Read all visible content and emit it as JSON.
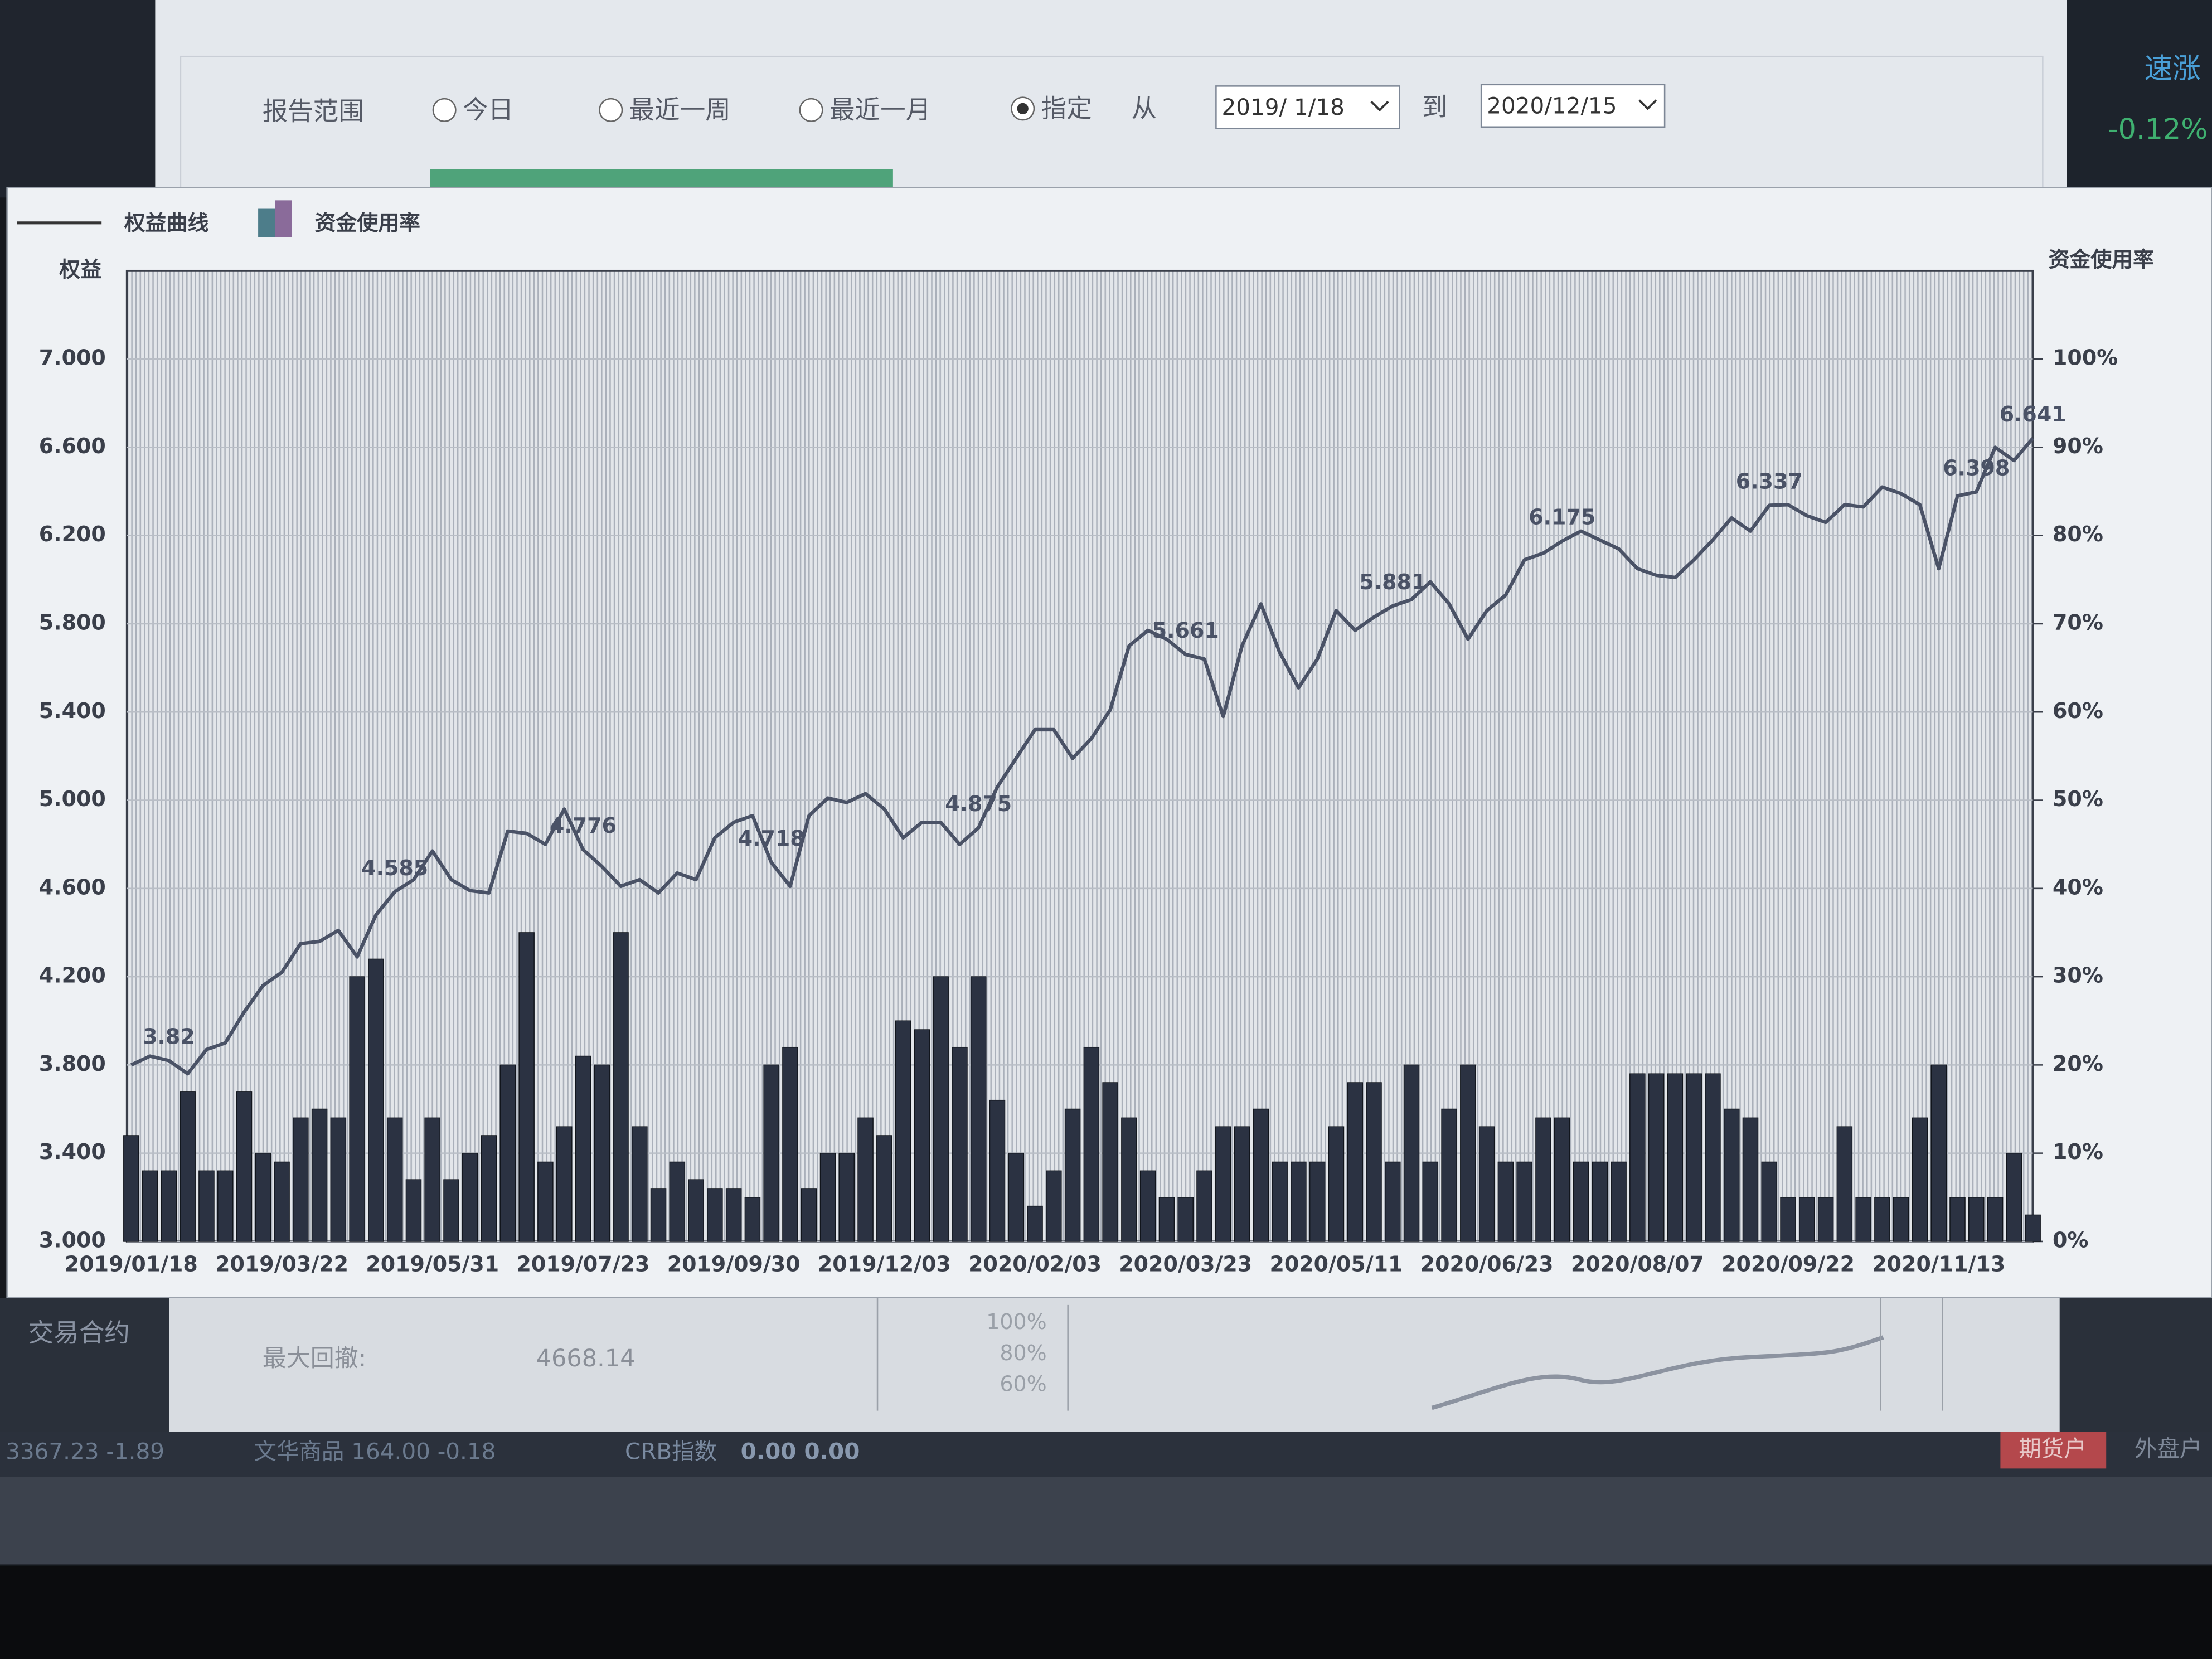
{
  "dialog": {
    "range_label": "报告范围",
    "options": [
      "今日",
      "最近一周",
      "最近一月",
      "指定"
    ],
    "from_label": "从",
    "from_date": "2019/ 1/18",
    "to_label": "到",
    "to_date": "2020/12/15"
  },
  "chart_data": {
    "type": "combo",
    "y_axis_title": "权益",
    "y2_axis_title": "资金使用率",
    "categories": [
      "2019/01/18",
      null,
      null,
      null,
      null,
      null,
      null,
      null,
      "2019/03/22",
      null,
      null,
      null,
      null,
      null,
      null,
      null,
      "2019/05/31",
      null,
      null,
      null,
      null,
      null,
      null,
      null,
      "2019/07/23",
      null,
      null,
      null,
      null,
      null,
      null,
      null,
      "2019/09/30",
      null,
      null,
      null,
      null,
      null,
      null,
      null,
      "2019/12/03",
      null,
      null,
      null,
      null,
      null,
      null,
      null,
      "2020/02/03",
      null,
      null,
      null,
      null,
      null,
      null,
      null,
      "2020/03/23",
      null,
      null,
      null,
      null,
      null,
      null,
      null,
      "2020/05/11",
      null,
      null,
      null,
      null,
      null,
      null,
      null,
      "2020/06/23",
      null,
      null,
      null,
      null,
      null,
      null,
      null,
      "2020/08/07",
      null,
      null,
      null,
      null,
      null,
      null,
      null,
      "2020/09/22",
      null,
      null,
      null,
      null,
      null,
      null,
      null,
      "2020/11/13",
      null,
      null,
      null,
      null,
      null
    ],
    "series": [
      {
        "name": "权益曲线",
        "color": "#4a5266",
        "values": [
          3.8,
          3.84,
          3.82,
          3.76,
          3.87,
          3.9,
          4.04,
          4.16,
          4.22,
          4.35,
          4.36,
          4.41,
          4.29,
          4.48,
          4.585,
          4.64,
          4.77,
          4.64,
          4.59,
          4.58,
          4.86,
          4.85,
          4.8,
          4.96,
          4.776,
          4.7,
          4.61,
          4.64,
          4.58,
          4.67,
          4.64,
          4.83,
          4.9,
          4.93,
          4.718,
          4.61,
          4.93,
          5.01,
          4.99,
          5.03,
          4.96,
          4.83,
          4.9,
          4.9,
          4.8,
          4.875,
          5.06,
          5.19,
          5.32,
          5.32,
          5.19,
          5.28,
          5.41,
          5.7,
          5.77,
          5.73,
          5.661,
          5.64,
          5.38,
          5.7,
          5.89,
          5.67,
          5.51,
          5.64,
          5.86,
          5.77,
          5.83,
          5.881,
          5.91,
          5.99,
          5.89,
          5.73,
          5.86,
          5.93,
          6.09,
          6.12,
          6.175,
          6.22,
          6.18,
          6.14,
          6.05,
          6.02,
          6.01,
          6.09,
          6.18,
          6.28,
          6.22,
          6.337,
          6.34,
          6.29,
          6.26,
          6.34,
          6.33,
          6.42,
          6.39,
          6.34,
          6.05,
          6.38,
          6.398,
          6.6,
          6.54,
          6.641
        ],
        "value_labels": [
          null,
          null,
          "3.82",
          null,
          null,
          null,
          null,
          null,
          null,
          null,
          null,
          null,
          null,
          null,
          "4.585",
          null,
          null,
          null,
          null,
          null,
          null,
          null,
          null,
          null,
          "4.776",
          null,
          null,
          null,
          null,
          null,
          null,
          null,
          null,
          null,
          "4.718",
          null,
          null,
          null,
          null,
          null,
          null,
          null,
          null,
          null,
          null,
          "4.875",
          null,
          null,
          null,
          null,
          null,
          null,
          null,
          null,
          null,
          null,
          "5.661",
          null,
          null,
          null,
          null,
          null,
          null,
          null,
          null,
          null,
          null,
          "5.881",
          null,
          null,
          null,
          null,
          null,
          null,
          null,
          null,
          "6.175",
          null,
          null,
          null,
          null,
          null,
          null,
          null,
          null,
          null,
          null,
          "6.337",
          null,
          null,
          null,
          null,
          null,
          null,
          null,
          null,
          null,
          null,
          "6.398",
          null,
          null,
          "6.641"
        ]
      },
      {
        "name": "资金使用率",
        "color": "#2b3242",
        "axis": "y2",
        "values": [
          12,
          8,
          8,
          17,
          8,
          8,
          17,
          10,
          9,
          14,
          15,
          14,
          30,
          32,
          14,
          7,
          14,
          7,
          10,
          12,
          20,
          35,
          9,
          13,
          21,
          20,
          35,
          13,
          6,
          9,
          7,
          6,
          6,
          5,
          20,
          22,
          6,
          10,
          10,
          14,
          12,
          25,
          24,
          30,
          22,
          30,
          16,
          10,
          4,
          8,
          15,
          22,
          18,
          14,
          8,
          5,
          5,
          8,
          13,
          13,
          15,
          9,
          9,
          9,
          13,
          18,
          18,
          9,
          20,
          9,
          15,
          20,
          13,
          9,
          9,
          14,
          14,
          9,
          9,
          9,
          19,
          19,
          19,
          19,
          19,
          15,
          14,
          9,
          5,
          5,
          5,
          13,
          5,
          5,
          5,
          14,
          20,
          5,
          5,
          5,
          10,
          3
        ]
      }
    ],
    "ylim": [
      3,
      7.4
    ],
    "yticks": [
      {
        "value": 3,
        "label": "3.000"
      },
      {
        "value": 3.4,
        "label": "3.400"
      },
      {
        "value": 3.8,
        "label": "3.800"
      },
      {
        "value": 4.2,
        "label": "4.200"
      },
      {
        "value": 4.6,
        "label": "4.600"
      },
      {
        "value": 5,
        "label": "5.000"
      },
      {
        "value": 5.4,
        "label": "5.400"
      },
      {
        "value": 5.8,
        "label": "5.800"
      },
      {
        "value": 6.2,
        "label": "6.200"
      },
      {
        "value": 6.6,
        "label": "6.600"
      },
      {
        "value": 7,
        "label": "7.000"
      }
    ],
    "y2lim": [
      0,
      110
    ],
    "y2ticks": [
      {
        "value": 0,
        "label": "0%"
      },
      {
        "value": 10,
        "label": "10%"
      },
      {
        "value": 20,
        "label": "20%"
      },
      {
        "value": 30,
        "label": "30%"
      },
      {
        "value": 40,
        "label": "40%"
      },
      {
        "value": 50,
        "label": "50%"
      },
      {
        "value": 60,
        "label": "60%"
      },
      {
        "value": 70,
        "label": "70%"
      },
      {
        "value": 80,
        "label": "80%"
      },
      {
        "value": 90,
        "label": "90%"
      },
      {
        "value": 100,
        "label": "100%"
      }
    ],
    "grid": true
  },
  "summary": {
    "contract_label": "交易合约",
    "max_drawdown_label": "最大回撤:",
    "max_drawdown": "4668.14",
    "mini_ticks": [
      "100%",
      "80%",
      "60%"
    ]
  },
  "side": {
    "right_values": [
      "速涨",
      "-0.12%"
    ]
  },
  "status_bar": {
    "items": [
      "3367.23 -1.89",
      "文华商品 164.00 -0.18",
      "CRB指数",
      "0.00 0.00"
    ],
    "tabs": [
      "期货户",
      "外盘户"
    ]
  }
}
